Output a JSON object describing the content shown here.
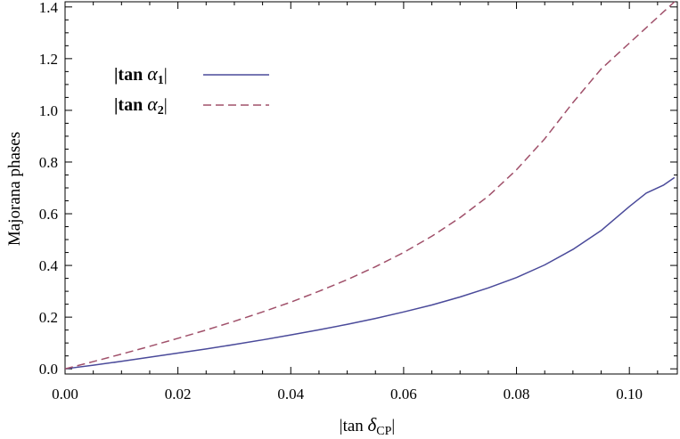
{
  "chart_data": {
    "type": "line",
    "title": "",
    "xlabel": {
      "prefix": "|tan ",
      "symbol": "δ",
      "subscript": "CP",
      "suffix": "|"
    },
    "ylabel": "Majorana  phases",
    "xlim": [
      0.0,
      0.1085
    ],
    "ylim": [
      -0.02,
      1.42
    ],
    "xticks": [
      0.0,
      0.02,
      0.04,
      0.06,
      0.08,
      0.1
    ],
    "xtick_labels": [
      "0.00",
      "0.02",
      "0.04",
      "0.06",
      "0.08",
      "0.10"
    ],
    "yticks": [
      0.0,
      0.2,
      0.4,
      0.6,
      0.8,
      1.0,
      1.2,
      1.4
    ],
    "ytick_labels": [
      "0.0",
      "0.2",
      "0.4",
      "0.6",
      "0.8",
      "1.0",
      "1.2",
      "1.4"
    ],
    "grid": false,
    "legend_position": "top-left",
    "x": [
      0.0,
      0.005,
      0.01,
      0.015,
      0.02,
      0.025,
      0.03,
      0.035,
      0.04,
      0.045,
      0.05,
      0.055,
      0.06,
      0.065,
      0.07,
      0.075,
      0.08,
      0.085,
      0.09,
      0.095,
      0.1,
      0.103,
      0.106,
      0.108
    ],
    "series": [
      {
        "legend": {
          "prefix": "|tan ",
          "symbol": "α",
          "subscript": "1",
          "suffix": "|"
        },
        "color": "#4a4a9a",
        "dash": "solid",
        "values": [
          0.0,
          0.014,
          0.029,
          0.045,
          0.061,
          0.077,
          0.094,
          0.112,
          0.131,
          0.151,
          0.172,
          0.195,
          0.22,
          0.247,
          0.278,
          0.313,
          0.353,
          0.402,
          0.462,
          0.535,
          0.628,
          0.68,
          0.71,
          0.74
        ]
      },
      {
        "legend": {
          "prefix": "|tan ",
          "symbol": "α",
          "subscript": "2",
          "suffix": "|"
        },
        "color": "#a0506a",
        "dash": "dashed",
        "values": [
          0.0,
          0.028,
          0.057,
          0.087,
          0.118,
          0.15,
          0.184,
          0.22,
          0.258,
          0.3,
          0.345,
          0.395,
          0.45,
          0.513,
          0.585,
          0.668,
          0.77,
          0.89,
          1.03,
          1.16,
          1.26,
          1.32,
          1.38,
          1.42
        ]
      }
    ]
  }
}
